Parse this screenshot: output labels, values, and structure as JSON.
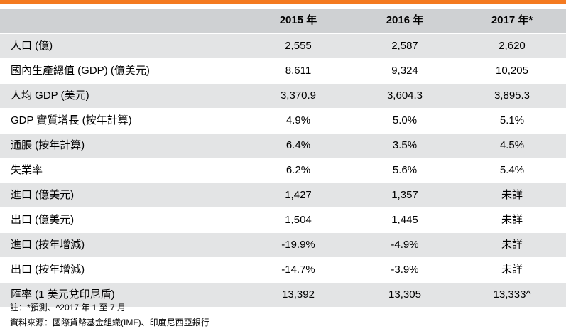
{
  "table": {
    "headers": [
      "",
      "2015 年",
      "2016 年",
      "2017 年*"
    ],
    "rows": [
      {
        "label": "人口 (億)",
        "values": [
          "2,555",
          "2,587",
          "2,620"
        ]
      },
      {
        "label": "國內生產總值 (GDP) (億美元)",
        "values": [
          "8,611",
          "9,324",
          "10,205"
        ]
      },
      {
        "label": "人均 GDP (美元)",
        "values": [
          "3,370.9",
          "3,604.3",
          "3,895.3"
        ]
      },
      {
        "label": "GDP 實質增長 (按年計算)",
        "values": [
          "4.9%",
          "5.0%",
          "5.1%"
        ]
      },
      {
        "label": "通脹 (按年計算)",
        "values": [
          "6.4%",
          "3.5%",
          "4.5%"
        ]
      },
      {
        "label": "失業率",
        "values": [
          "6.2%",
          "5.6%",
          "5.4%"
        ]
      },
      {
        "label": "進口 (億美元)",
        "values": [
          "1,427",
          "1,357",
          "未詳"
        ]
      },
      {
        "label": "出口 (億美元)",
        "values": [
          "1,504",
          "1,445",
          "未詳"
        ]
      },
      {
        "label": "進口 (按年增減)",
        "values": [
          "-19.9%",
          "-4.9%",
          "未詳"
        ]
      },
      {
        "label": "出口 (按年增減)",
        "values": [
          "-14.7%",
          "-3.9%",
          "未詳"
        ]
      },
      {
        "label": "匯率 (1 美元兌印尼盾)",
        "values": [
          "13,392",
          "13,305",
          "13,333^"
        ]
      }
    ]
  },
  "notes": {
    "note": "註：*預測、^2017 年 1 至 7 月",
    "source": "資料來源：國際貨幣基金組織(IMF)、印度尼西亞銀行"
  },
  "colors": {
    "accent_bar": "#f47a20",
    "header_bg": "#cfd1d3",
    "shaded_row_bg": "#e3e4e5"
  }
}
